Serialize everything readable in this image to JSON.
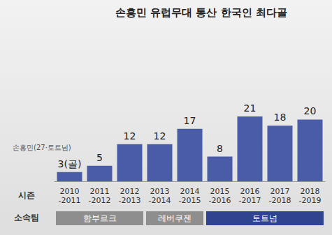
{
  "chart_data": {
    "type": "bar",
    "title": "손흥민 유럽무대 통산 한국인 최다골",
    "annotations": [
      "손흥민(27·토트넘)"
    ],
    "category_axis_label": "시즌",
    "categories": [
      "2010\n-2011",
      "2011\n-2012",
      "2012\n-2013",
      "2013\n-2014",
      "2014\n-2015",
      "2015\n-2016",
      "2016\n-2017",
      "2017\n-2018",
      "2018\n-2019"
    ],
    "values": [
      3,
      5,
      12,
      12,
      17,
      8,
      21,
      18,
      20
    ],
    "value_labels": [
      "3(골)",
      "5",
      "12",
      "12",
      "17",
      "8",
      "21",
      "18",
      "20"
    ],
    "color": "#4a5ba8",
    "ylim": [
      0,
      21
    ],
    "tick_labels": "x",
    "data_labels": true,
    "grid": false,
    "teams_label": "소속팀",
    "teams": [
      {
        "name": "함부르크",
        "from": "2010\n-2011",
        "to": "2012\n-2013",
        "color": "#8e8e8e"
      },
      {
        "name": "레버쿠젠",
        "from": "2013\n-2014",
        "to": "2014\n-2015",
        "color": "#8e8e8e"
      },
      {
        "name": "토트넘",
        "from": "2015\n-2016",
        "to": "2018\n-2019",
        "color": "#2f4391"
      }
    ]
  }
}
